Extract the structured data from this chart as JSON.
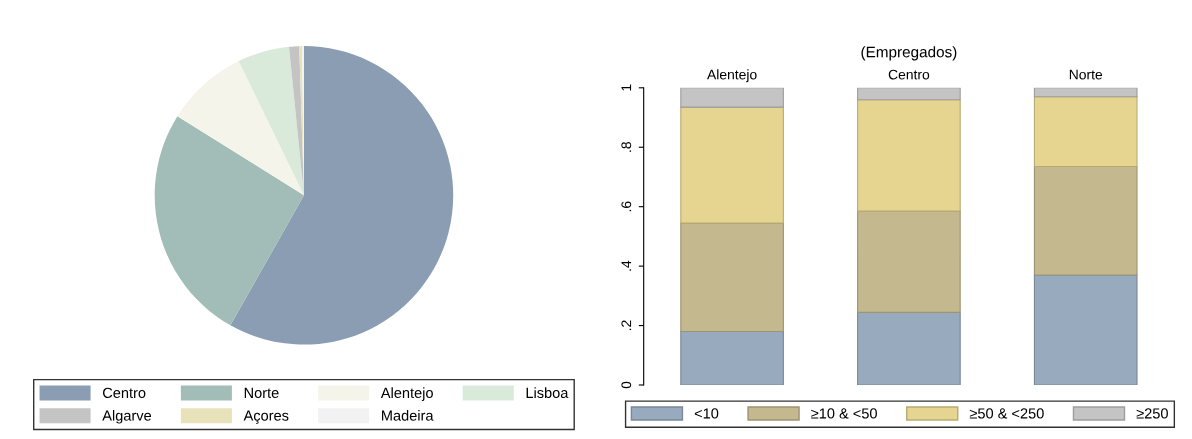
{
  "chart_data": [
    {
      "type": "pie",
      "categories": [
        "Centro",
        "Norte",
        "Alentejo",
        "Lisboa",
        "Algarve",
        "Açores",
        "Madeira"
      ],
      "values": [
        58.2,
        25.7,
        8.9,
        5.6,
        1.1,
        0.3,
        0.2
      ],
      "colors": [
        "#8a9db3",
        "#a2bdb7",
        "#f4f4ea",
        "#d9eadb",
        "#c4c4c4",
        "#e8e2bb",
        "#f2f2f2"
      ],
      "legend": "bottom"
    },
    {
      "type": "bar",
      "title": "(Empregados)",
      "categories": [
        "Alentejo",
        "Centro",
        "Norte"
      ],
      "stacked": true,
      "ylim": [
        0,
        1
      ],
      "yticks": [
        0,
        {
          "value": 0.2,
          "label": ".2"
        },
        {
          "value": 0.4,
          "label": ".4"
        },
        {
          "value": 0.6,
          "label": ".6"
        },
        {
          "value": 0.8,
          "label": ".8"
        },
        1
      ],
      "legend": "bottom",
      "series": [
        {
          "name": "<10",
          "color": "#98aabd",
          "values": [
            0.18,
            0.245,
            0.37
          ]
        },
        {
          "name": "≥10 & <50",
          "color": "#c4b88f",
          "values": [
            0.365,
            0.34,
            0.365
          ]
        },
        {
          "name": "≥50 & <250",
          "color": "#e6d590",
          "values": [
            0.39,
            0.375,
            0.235
          ]
        },
        {
          "name": "≥250",
          "color": "#c4c4c4",
          "values": [
            0.065,
            0.04,
            0.03
          ]
        }
      ]
    }
  ]
}
